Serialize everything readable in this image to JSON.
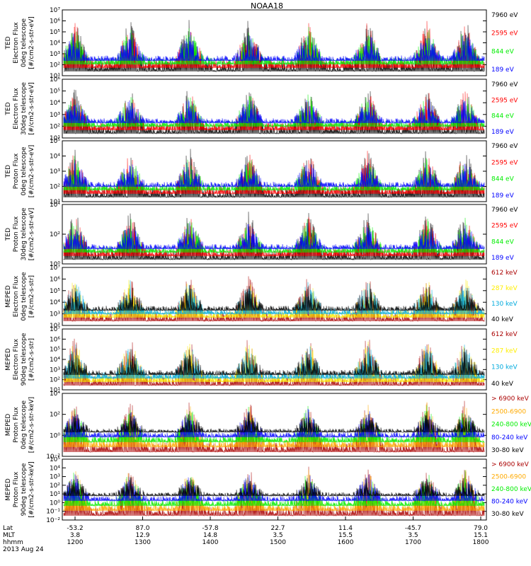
{
  "title": "NOAA18",
  "colors": {
    "black": "#000000",
    "blue": "#0000ff",
    "red": "#ff0000",
    "green": "#00ee00",
    "yellow": "#ffee00",
    "cyan": "#00aadd",
    "darkred": "#aa0000",
    "orange": "#ffaa00"
  },
  "chart_data": [
    {
      "type": "line",
      "ylabel": [
        "TED",
        "Electron Flux",
        "0deg telescope",
        "[#/cm2-s-str-eV]"
      ],
      "yticks": [
        "10¹",
        "10²",
        "10³",
        "10⁴",
        "10⁵",
        "10⁶",
        "10⁷"
      ],
      "ylim": [
        10,
        10000000
      ],
      "log": true,
      "legend": [
        {
          "text": "7960 eV",
          "color": "black"
        },
        {
          "text": "2595 eV",
          "color": "red"
        },
        {
          "text": "844 eV",
          "color": "green"
        },
        {
          "text": "189 eV",
          "color": "blue"
        }
      ]
    },
    {
      "type": "line",
      "ylabel": [
        "TED",
        "Electron Flux",
        "30deg telescope",
        "[#/cm2-s-str-eV]"
      ],
      "yticks": [
        "10¹",
        "10²",
        "10³",
        "10⁴",
        "10⁵",
        "10⁶"
      ],
      "ylim": [
        10,
        1000000
      ],
      "log": true,
      "legend": [
        {
          "text": "7960 eV",
          "color": "black"
        },
        {
          "text": "2595 eV",
          "color": "red"
        },
        {
          "text": "844 eV",
          "color": "green"
        },
        {
          "text": "189 eV",
          "color": "blue"
        }
      ]
    },
    {
      "type": "line",
      "ylabel": [
        "TED",
        "Proton Flux",
        "0deg telescope",
        "[#/cm2-s-str-eV]"
      ],
      "yticks": [
        "10¹",
        "10²",
        "10³",
        "10⁴",
        "10⁵"
      ],
      "ylim": [
        10,
        100000
      ],
      "log": true,
      "legend": [
        {
          "text": "7960 eV",
          "color": "black"
        },
        {
          "text": "2595 eV",
          "color": "red"
        },
        {
          "text": "844 eV",
          "color": "green"
        },
        {
          "text": "189 eV",
          "color": "blue"
        }
      ]
    },
    {
      "type": "line",
      "ylabel": [
        "TED",
        "Proton Flux",
        "30deg telescope",
        "[#/cm2-s-str-eV]"
      ],
      "yticks": [
        "10⁰",
        "10²",
        "10⁴"
      ],
      "ylim": [
        1,
        100000
      ],
      "log": true,
      "legend": [
        {
          "text": "7960 eV",
          "color": "black"
        },
        {
          "text": "2595 eV",
          "color": "red"
        },
        {
          "text": "844 eV",
          "color": "green"
        },
        {
          "text": "189 eV",
          "color": "blue"
        }
      ]
    },
    {
      "type": "line",
      "ylabel": [
        "MEPED",
        "Electron Flux",
        "0deg telescope",
        "[#/cm2-s-str]"
      ],
      "yticks": [
        "10²",
        "10³",
        "10⁴",
        "10⁵",
        "10⁶",
        "10⁷"
      ],
      "ylim": [
        100,
        10000000
      ],
      "log": true,
      "legend": [
        {
          "text": "612 keV",
          "color": "darkred"
        },
        {
          "text": "287 keV",
          "color": "yellow"
        },
        {
          "text": "130 keV",
          "color": "cyan"
        },
        {
          "text": "40 keV",
          "color": "black"
        }
      ]
    },
    {
      "type": "line",
      "ylabel": [
        "MEPED",
        "Electron Flux",
        "90deg telescope",
        "[#/cm2-s-str]"
      ],
      "yticks": [
        "10¹",
        "10²",
        "10³",
        "10⁴",
        "10⁵",
        "10⁶",
        "10⁷"
      ],
      "ylim": [
        10,
        10000000
      ],
      "log": true,
      "legend": [
        {
          "text": "612 keV",
          "color": "darkred"
        },
        {
          "text": "287 keV",
          "color": "yellow"
        },
        {
          "text": "130 keV",
          "color": "cyan"
        },
        {
          "text": "40 keV",
          "color": "black"
        }
      ]
    },
    {
      "type": "line",
      "ylabel": [
        "MEPED",
        "Proton Flux",
        "0deg telescope",
        "[#/cm2-s-str-keV]"
      ],
      "yticks": [
        "10⁻²",
        "10⁰",
        "10²",
        "10⁴"
      ],
      "ylim": [
        0.01,
        100000
      ],
      "log": true,
      "legend": [
        {
          "text": "> 6900 keV",
          "color": "darkred"
        },
        {
          "text": "2500-6900",
          "color": "orange"
        },
        {
          "text": "240-800 keV",
          "color": "green"
        },
        {
          "text": "80-240 keV",
          "color": "blue"
        },
        {
          "text": "30-80 keV",
          "color": "black"
        }
      ]
    },
    {
      "type": "line",
      "ylabel": [
        "MEPED",
        "Proton Flux",
        "90deg telescope",
        "[#/cm2-s-str-keV]"
      ],
      "yticks": [
        "10⁻²",
        "10⁻¹",
        "10⁰",
        "10¹",
        "10²",
        "10³",
        "10⁴",
        "10⁵"
      ],
      "ylim": [
        0.01,
        100000
      ],
      "log": true,
      "legend": [
        {
          "text": "> 6900 keV",
          "color": "darkred"
        },
        {
          "text": "2500-6900",
          "color": "orange"
        },
        {
          "text": "240-800 keV",
          "color": "green"
        },
        {
          "text": "80-240 keV",
          "color": "blue"
        },
        {
          "text": "30-80 keV",
          "color": "black"
        }
      ]
    }
  ],
  "xaxis": {
    "rows": [
      {
        "label": "Lat",
        "values": [
          "-53.2",
          "87.0",
          "-57.8",
          "22.7",
          "11.4",
          "-45.7",
          "79.0"
        ]
      },
      {
        "label": "MLT",
        "values": [
          "3.8",
          "12.9",
          "14.8",
          "3.5",
          "15.5",
          "3.5",
          "15.1"
        ]
      },
      {
        "label": "hhmm",
        "values": [
          "1200",
          "1300",
          "1400",
          "1500",
          "1600",
          "1700",
          "1800"
        ]
      }
    ],
    "date": "2013 Aug 24"
  }
}
